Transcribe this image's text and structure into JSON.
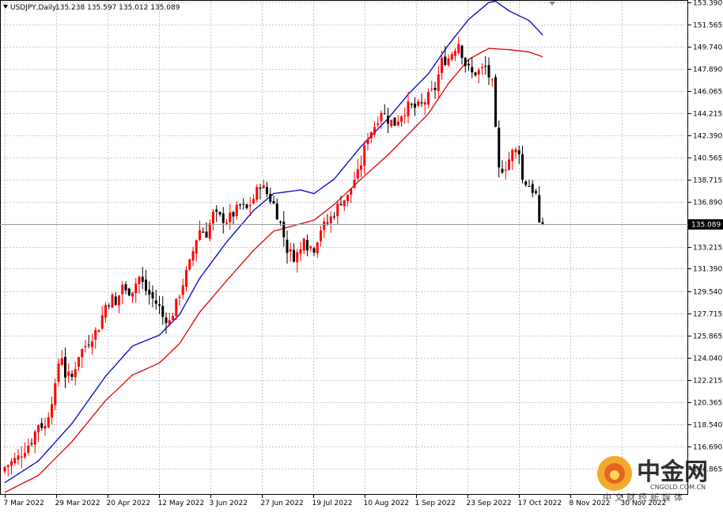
{
  "header": {
    "symbol": "USDJPY,Daily",
    "ohlc": "135.238 135.597 135.012 135.089"
  },
  "price_tag": "135.089",
  "watermark": {
    "brand_cn": "中金网",
    "url": "CNGOLD.COM.CN",
    "sub_cn": "中文财经新媒体"
  },
  "colors": {
    "bull": "#ff0000",
    "bear": "#000000",
    "ma_fast": "#0000cc",
    "ma_slow": "#e00000",
    "grid": "#c8c8c8",
    "price_tag_bg": "#000000"
  },
  "chart_data": {
    "type": "candlestick",
    "title": "",
    "grid": true,
    "y_axis_position": "right",
    "ylim": [
      112.7,
      153.6
    ],
    "yticks": [
      "153.390",
      "151.565",
      "149.740",
      "147.890",
      "146.065",
      "144.215",
      "142.390",
      "140.565",
      "138.715",
      "136.890",
      "135.089",
      "133.215",
      "131.390",
      "129.540",
      "127.715",
      "125.865",
      "124.040",
      "122.215",
      "120.365",
      "118.540",
      "116.690",
      "114.865"
    ],
    "xticks": [
      "7 Mar 2022",
      "29 Mar 2022",
      "20 Apr 2022",
      "12 May 2022",
      "3 Jun 2022",
      "27 Jun 2022",
      "19 Jul 2022",
      "10 Aug 2022",
      "1 Sep 2022",
      "23 Sep 2022",
      "17 Oct 2022",
      "8 Nov 2022",
      "30 Nov 2022"
    ],
    "last_price": 135.089,
    "close_path": [
      [
        0,
        115.0
      ],
      [
        4,
        115.8
      ],
      [
        8,
        117.2
      ],
      [
        10,
        118.6
      ],
      [
        12,
        118.3
      ],
      [
        14,
        120.6
      ],
      [
        15,
        121.5
      ],
      [
        16,
        123.6
      ],
      [
        17,
        124.2
      ],
      [
        18,
        122.6
      ],
      [
        20,
        122.4
      ],
      [
        22,
        124.3
      ],
      [
        25,
        125.4
      ],
      [
        28,
        126.6
      ],
      [
        30,
        128.4
      ],
      [
        32,
        129.0
      ],
      [
        33,
        128.3
      ],
      [
        35,
        130.1
      ],
      [
        36,
        129.4
      ],
      [
        38,
        129.7
      ],
      [
        40,
        130.7
      ],
      [
        42,
        129.6
      ],
      [
        44,
        128.9
      ],
      [
        46,
        128.2
      ],
      [
        47,
        127.4
      ],
      [
        48,
        127.3
      ],
      [
        49,
        127.0
      ],
      [
        51,
        128.5
      ],
      [
        53,
        130.2
      ],
      [
        55,
        131.8
      ],
      [
        57,
        133.9
      ],
      [
        58,
        134.6
      ],
      [
        60,
        134.3
      ],
      [
        62,
        135.9
      ],
      [
        64,
        135.6
      ],
      [
        66,
        135.4
      ],
      [
        68,
        135.9
      ],
      [
        70,
        136.6
      ],
      [
        72,
        136.3
      ],
      [
        74,
        137.2
      ],
      [
        76,
        138.4
      ],
      [
        78,
        137.6
      ],
      [
        80,
        136.7
      ],
      [
        82,
        135.1
      ],
      [
        84,
        133.0
      ],
      [
        86,
        132.4
      ],
      [
        88,
        132.9
      ],
      [
        89,
        134.3
      ],
      [
        90,
        133.3
      ],
      [
        92,
        133.1
      ],
      [
        94,
        134.7
      ],
      [
        96,
        135.2
      ],
      [
        98,
        136.0
      ],
      [
        100,
        137.0
      ],
      [
        102,
        137.3
      ],
      [
        104,
        138.8
      ],
      [
        105,
        139.2
      ],
      [
        106,
        140.1
      ],
      [
        108,
        142.4
      ],
      [
        110,
        143.2
      ],
      [
        112,
        144.5
      ],
      [
        114,
        143.7
      ],
      [
        116,
        143.4
      ],
      [
        118,
        144.2
      ],
      [
        120,
        144.8
      ],
      [
        122,
        144.7
      ],
      [
        124,
        144.9
      ],
      [
        126,
        145.6
      ],
      [
        128,
        146.3
      ],
      [
        130,
        148.5
      ],
      [
        132,
        148.8
      ],
      [
        134,
        149.7
      ],
      [
        135,
        150.1
      ],
      [
        137,
        148.3
      ],
      [
        139,
        147.5
      ],
      [
        141,
        147.7
      ],
      [
        143,
        148.0
      ],
      [
        145,
        146.6
      ],
      [
        146,
        142.7
      ],
      [
        147,
        139.5
      ],
      [
        149,
        139.9
      ],
      [
        151,
        141.0
      ],
      [
        153,
        141.2
      ],
      [
        154,
        138.7
      ],
      [
        156,
        138.3
      ],
      [
        158,
        137.5
      ],
      [
        159,
        134.8
      ],
      [
        160,
        135.089
      ]
    ],
    "series": [
      {
        "name": "",
        "color": "#0000cc",
        "points": [
          [
            0,
            113.7
          ],
          [
            10,
            115.5
          ],
          [
            20,
            118.6
          ],
          [
            30,
            122.5
          ],
          [
            38,
            125.0
          ],
          [
            46,
            125.9
          ],
          [
            52,
            127.6
          ],
          [
            58,
            130.6
          ],
          [
            66,
            133.6
          ],
          [
            74,
            136.2
          ],
          [
            80,
            137.6
          ],
          [
            88,
            137.9
          ],
          [
            92,
            137.6
          ],
          [
            98,
            138.8
          ],
          [
            106,
            141.5
          ],
          [
            114,
            143.8
          ],
          [
            120,
            145.8
          ],
          [
            126,
            147.5
          ],
          [
            132,
            149.9
          ],
          [
            138,
            152.0
          ],
          [
            144,
            153.4
          ],
          [
            146,
            153.5
          ],
          [
            150,
            152.7
          ],
          [
            156,
            151.9
          ],
          [
            160,
            150.7
          ]
        ]
      },
      {
        "name": "",
        "color": "#e00000",
        "points": [
          [
            0,
            112.9
          ],
          [
            10,
            114.3
          ],
          [
            20,
            117.1
          ],
          [
            30,
            120.5
          ],
          [
            38,
            122.6
          ],
          [
            46,
            123.6
          ],
          [
            52,
            125.2
          ],
          [
            58,
            127.8
          ],
          [
            66,
            130.4
          ],
          [
            74,
            132.9
          ],
          [
            80,
            134.5
          ],
          [
            88,
            135.1
          ],
          [
            92,
            135.4
          ],
          [
            98,
            136.7
          ],
          [
            106,
            138.8
          ],
          [
            114,
            140.8
          ],
          [
            120,
            142.5
          ],
          [
            126,
            144.2
          ],
          [
            132,
            146.7
          ],
          [
            138,
            148.7
          ],
          [
            144,
            149.6
          ],
          [
            150,
            149.5
          ],
          [
            156,
            149.3
          ],
          [
            160,
            148.9
          ]
        ]
      }
    ]
  }
}
